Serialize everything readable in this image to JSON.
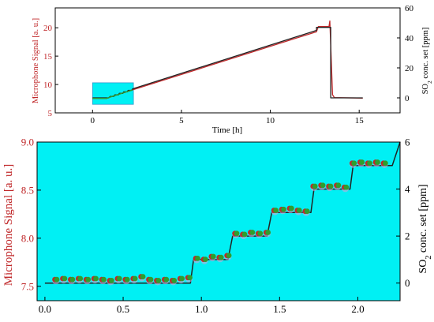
{
  "colors": {
    "red": "#c0282a",
    "dark": "#222222",
    "green": "#2e9e2e",
    "cyan": "#00f0f4",
    "axis": "#000000"
  },
  "chart_data": [
    {
      "type": "line",
      "xlabel": "Time [h]",
      "ylabel_left": "Microphone Signal [a. u.]",
      "ylabel_right": "SO2 conc. set [ppm]",
      "ylabel_right_parts": {
        "pre": "SO",
        "sub": "2",
        "post": " conc. set [ppm]"
      },
      "xlim": [
        -2.1,
        17.3
      ],
      "ylim_left": [
        5,
        23.5
      ],
      "ylim_right": [
        -10,
        60
      ],
      "xticks": [
        "0",
        "5",
        "10",
        "15"
      ],
      "yticks_left": [
        "5",
        "10",
        "15",
        "20"
      ],
      "yticks_right": [
        "0",
        "20",
        "40",
        "60"
      ],
      "highlight_box": {
        "x": [
          0.0,
          2.3
        ],
        "y": [
          6.5,
          10.3
        ],
        "color": "#00f0f4"
      },
      "series": [
        {
          "axis": "left",
          "color": "#c0282a",
          "x": [
            0.0,
            0.8,
            1.0,
            1.25,
            1.5,
            1.75,
            2.0,
            2.25,
            12.6,
            12.7,
            13.3,
            13.35,
            13.4,
            13.5,
            13.6,
            15.2
          ],
          "y": [
            7.55,
            7.55,
            7.8,
            8.05,
            8.3,
            8.55,
            8.8,
            9.05,
            19.3,
            20.2,
            20.2,
            21.2,
            17.0,
            8.2,
            7.7,
            7.6
          ]
        },
        {
          "axis": "right",
          "color": "#222222",
          "x": [
            0.0,
            0.9,
            1.0,
            1.2,
            1.25,
            1.45,
            1.5,
            1.7,
            1.75,
            1.95,
            2.0,
            2.2,
            2.25,
            12.6,
            12.6,
            13.4,
            13.4,
            15.2
          ],
          "y": [
            0,
            0,
            1,
            1,
            2,
            2,
            3,
            3,
            4,
            4,
            5,
            5,
            6,
            45,
            47,
            47,
            0,
            0
          ]
        }
      ]
    },
    {
      "type": "line",
      "xlabel": "",
      "ylabel_left": "Microphone Signal [a. u.]",
      "ylabel_right": "SO2 conc. set [ppm]",
      "ylabel_right_parts": {
        "pre": "SO",
        "sub": "2",
        "post": " conc. set [ppm]"
      },
      "xlim": [
        -0.05,
        2.27
      ],
      "ylim_left": [
        7.35,
        9.0
      ],
      "ylim_right": [
        -0.75,
        6.0
      ],
      "xticks": [
        "0.0",
        "0.5",
        "1.0",
        "1.5",
        "2.0"
      ],
      "yticks_left": [
        "7.5",
        "8.0",
        "8.5",
        "9.0"
      ],
      "yticks_right": [
        "0",
        "2",
        "4",
        "6"
      ],
      "background": "#00f0f4",
      "series": [
        {
          "name": "",
          "axis": "right",
          "color": "#222222",
          "x": [
            0.0,
            0.93,
            0.95,
            1.17,
            1.2,
            1.42,
            1.45,
            1.7,
            1.72,
            1.95,
            1.97,
            2.22,
            2.27
          ],
          "y": [
            0,
            0,
            1,
            1,
            2,
            2,
            3,
            3,
            4,
            4,
            5,
            5,
            6
          ]
        },
        {
          "name": "",
          "axis": "left",
          "color": "#2e9e2e",
          "marker": "circle",
          "x": [
            0.07,
            0.12,
            0.17,
            0.22,
            0.27,
            0.32,
            0.37,
            0.42,
            0.47,
            0.52,
            0.57,
            0.62,
            0.67,
            0.72,
            0.77,
            0.82,
            0.87,
            0.92,
            0.97,
            1.02,
            1.07,
            1.12,
            1.17,
            1.22,
            1.27,
            1.32,
            1.37,
            1.42,
            1.47,
            1.52,
            1.57,
            1.62,
            1.67,
            1.72,
            1.77,
            1.82,
            1.87,
            1.92,
            1.97,
            2.02,
            2.07,
            2.12,
            2.17
          ],
          "y": [
            7.57,
            7.58,
            7.57,
            7.58,
            7.57,
            7.58,
            7.57,
            7.56,
            7.58,
            7.57,
            7.58,
            7.6,
            7.57,
            7.56,
            7.57,
            7.56,
            7.58,
            7.59,
            7.79,
            7.78,
            7.81,
            7.8,
            7.82,
            8.05,
            8.04,
            8.06,
            8.05,
            8.06,
            8.29,
            8.3,
            8.31,
            8.29,
            8.28,
            8.54,
            8.55,
            8.54,
            8.55,
            8.53,
            8.78,
            8.79,
            8.78,
            8.79,
            8.78
          ]
        }
      ]
    }
  ]
}
